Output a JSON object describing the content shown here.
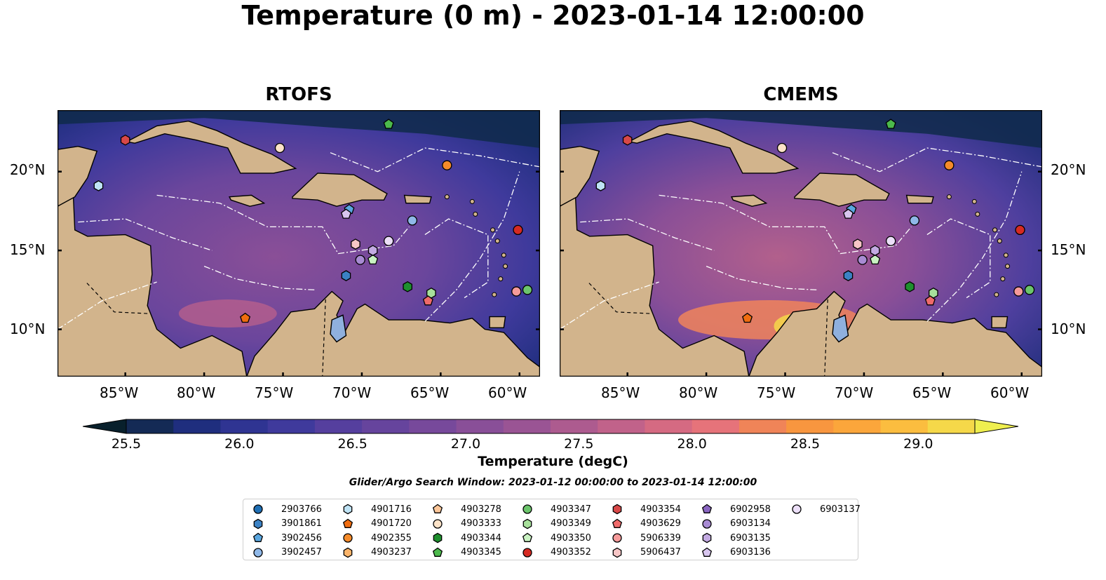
{
  "title": "Temperature (0 m) - 2023-01-14 12:00:00",
  "panels": [
    {
      "title": "RTOFS"
    },
    {
      "title": "CMEMS"
    }
  ],
  "lat_labels": [
    "20°N",
    "15°N",
    "10°N"
  ],
  "lon_labels": [
    "85°W",
    "80°W",
    "75°W",
    "70°W",
    "65°W",
    "60°W"
  ],
  "extent": {
    "lon_min": -89.3,
    "lon_max": -58.7,
    "lat_min": 7.0,
    "lat_max": 23.9
  },
  "colorbar": {
    "label": "Temperature (degC)",
    "ticks": [
      "25.5",
      "26.0",
      "26.5",
      "27.0",
      "27.5",
      "28.0",
      "28.5",
      "29.0"
    ],
    "min": 25.5,
    "max": 29.25,
    "step": 0.25,
    "colors": [
      "#08202c",
      "#142a55",
      "#1f2e7e",
      "#2f3492",
      "#3f3a9c",
      "#553f9e",
      "#66449d",
      "#77499b",
      "#894f98",
      "#9a5494",
      "#ad5b8f",
      "#c1628a",
      "#d56a82",
      "#e6737a",
      "#f08458",
      "#f8963f",
      "#fba63b",
      "#fbbd3f",
      "#f5d849",
      "#efef4f"
    ]
  },
  "search_window": "Glider/Argo Search Window: 2023-01-12 00:00:00 to 2023-01-14 12:00:00",
  "platforms": [
    {
      "id": "2903766",
      "marker": "circle",
      "color": "#1f6fb4",
      "lon": null,
      "lat": null
    },
    {
      "id": "3901861",
      "marker": "hexagon",
      "color": "#3b82c4",
      "lon": -71.0,
      "lat": 13.4
    },
    {
      "id": "3902456",
      "marker": "pentagon",
      "color": "#5aa6df",
      "lon": -70.8,
      "lat": 17.6
    },
    {
      "id": "3902457",
      "marker": "circle",
      "color": "#8fb8e8",
      "lon": -66.8,
      "lat": 16.9
    },
    {
      "id": "4901716",
      "marker": "hexagon",
      "color": "#bfe3f5",
      "lon": -86.7,
      "lat": 19.1
    },
    {
      "id": "4901720",
      "marker": "pentagon",
      "color": "#f06d10",
      "lon": -77.4,
      "lat": 10.7
    },
    {
      "id": "4902355",
      "marker": "circle",
      "color": "#f58b2a",
      "lon": -64.6,
      "lat": 20.4
    },
    {
      "id": "4903237",
      "marker": "hexagon",
      "color": "#fbb46a",
      "lon": null,
      "lat": null
    },
    {
      "id": "4903278",
      "marker": "pentagon",
      "color": "#fcc79a",
      "lon": null,
      "lat": null
    },
    {
      "id": "4903333",
      "marker": "circle",
      "color": "#fde3c8",
      "lon": -75.2,
      "lat": 21.5
    },
    {
      "id": "4903344",
      "marker": "hexagon",
      "color": "#1e8f2e",
      "lon": -67.1,
      "lat": 12.7
    },
    {
      "id": "4903345",
      "marker": "pentagon",
      "color": "#4cb94c",
      "lon": -68.3,
      "lat": 23.0
    },
    {
      "id": "4903347",
      "marker": "circle",
      "color": "#6cc56c",
      "lon": -59.5,
      "lat": 12.5
    },
    {
      "id": "4903349",
      "marker": "hexagon",
      "color": "#a7e09b",
      "lon": -65.6,
      "lat": 12.3
    },
    {
      "id": "4903350",
      "marker": "pentagon",
      "color": "#c9f2c2",
      "lon": -69.3,
      "lat": 14.4
    },
    {
      "id": "4903352",
      "marker": "circle",
      "color": "#d62a22",
      "lon": -60.1,
      "lat": 16.3
    },
    {
      "id": "4903354",
      "marker": "hexagon",
      "color": "#d84848",
      "lon": -85.0,
      "lat": 22.0
    },
    {
      "id": "4903629",
      "marker": "pentagon",
      "color": "#ef6a6a",
      "lon": -65.8,
      "lat": 11.8
    },
    {
      "id": "5906339",
      "marker": "circle",
      "color": "#f59a9a",
      "lon": -60.2,
      "lat": 12.4
    },
    {
      "id": "5906437",
      "marker": "hexagon",
      "color": "#f7c6c6",
      "lon": -70.4,
      "lat": 15.4
    },
    {
      "id": "6902958",
      "marker": "pentagon",
      "color": "#8a66c1",
      "lon": null,
      "lat": null
    },
    {
      "id": "6903134",
      "marker": "circle",
      "color": "#a88bd3",
      "lon": -70.1,
      "lat": 14.4
    },
    {
      "id": "6903135",
      "marker": "hexagon",
      "color": "#c3aae2",
      "lon": -69.3,
      "lat": 15.0
    },
    {
      "id": "6903136",
      "marker": "pentagon",
      "color": "#d8c6ef",
      "lon": -71.0,
      "lat": 17.3
    },
    {
      "id": "6903137",
      "marker": "circle",
      "color": "#ecdff8",
      "lon": -68.3,
      "lat": 15.6
    }
  ]
}
